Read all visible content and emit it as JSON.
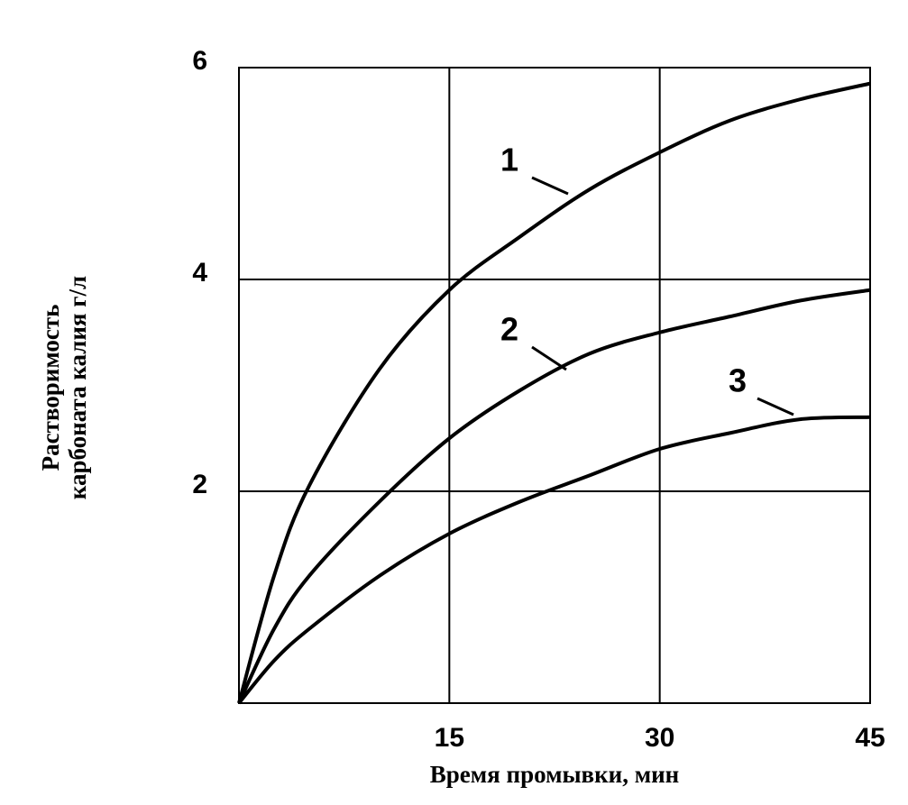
{
  "chart_data": {
    "type": "line",
    "xlabel": "Время промывки, мин",
    "ylabel": [
      "Растворимость",
      "карбоната калия г/л"
    ],
    "x": [
      0,
      2.5,
      5,
      10,
      15,
      20,
      25,
      30,
      35,
      40,
      45
    ],
    "series": [
      {
        "name": "1",
        "color": "#000000",
        "values": [
          0,
          1.2,
          2.05,
          3.15,
          3.9,
          4.4,
          4.85,
          5.2,
          5.5,
          5.7,
          5.85
        ]
      },
      {
        "name": "2",
        "color": "#000000",
        "values": [
          0,
          0.7,
          1.2,
          1.9,
          2.5,
          2.95,
          3.3,
          3.5,
          3.65,
          3.8,
          3.9
        ]
      },
      {
        "name": "3",
        "color": "#000000",
        "values": [
          0,
          0.4,
          0.7,
          1.2,
          1.6,
          1.9,
          2.15,
          2.4,
          2.55,
          2.68,
          2.7
        ]
      }
    ],
    "xlim": [
      0,
      45
    ],
    "xticks": [
      15,
      30,
      45
    ],
    "ylim": [
      0,
      6
    ],
    "yticks": [
      2,
      4,
      6
    ],
    "grid": true
  }
}
